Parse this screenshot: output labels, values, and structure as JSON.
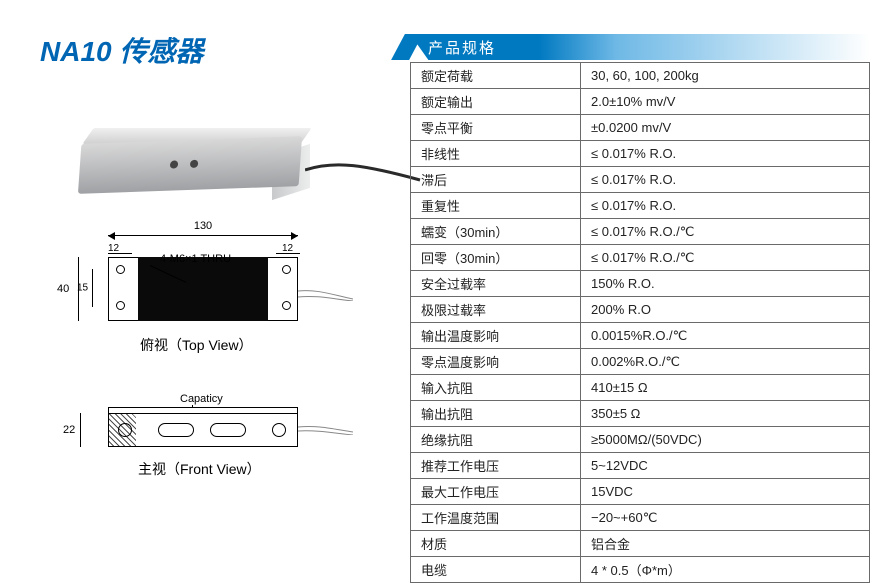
{
  "title": "NA10 传感器",
  "spec_header": "产品规格",
  "photo": {
    "alt": "NA10 load cell sensor"
  },
  "top_view": {
    "label": "俯视（Top View）",
    "dim_width": "130",
    "dim_edge_a": "12",
    "dim_edge_b": "12",
    "dim_height": "40",
    "dim_hole_pitch": "15",
    "callout": "4-M6×1 THRU"
  },
  "front_view": {
    "label": "主视（Front View）",
    "capacity_label": "Capaticy",
    "dim_thickness": "22"
  },
  "spec_rows": [
    {
      "k": "额定荷载",
      "v": "30, 60, 100, 200kg"
    },
    {
      "k": "额定输出",
      "v": "2.0±10% mv/V"
    },
    {
      "k": "零点平衡",
      "v": " ±0.0200 mv/V"
    },
    {
      "k": "非线性",
      "v": "≤ 0.017% R.O."
    },
    {
      "k": "滞后",
      "v": "≤ 0.017% R.O."
    },
    {
      "k": "重复性",
      "v": "≤ 0.017% R.O."
    },
    {
      "k": "蠕变（30min）",
      "v": "≤ 0.017% R.O./℃"
    },
    {
      "k": "回零（30min）",
      "v": "≤ 0.017% R.O./℃"
    },
    {
      "k": "安全过载率",
      "v": "150% R.O."
    },
    {
      "k": "极限过载率",
      "v": "200% R.O"
    },
    {
      "k": "输出温度影响",
      "v": "0.0015%R.O./℃"
    },
    {
      "k": "零点温度影响",
      "v": "0.002%R.O./℃"
    },
    {
      "k": "输入抗阻",
      "v": "410±15 Ω"
    },
    {
      "k": "输出抗阻",
      "v": "350±5 Ω"
    },
    {
      "k": "绝缘抗阻",
      "v": " ≥5000MΩ/(50VDC)"
    },
    {
      "k": "推荐工作电压",
      "v": "5~12VDC"
    },
    {
      "k": "最大工作电压",
      "v": "15VDC"
    },
    {
      "k": "工作温度范围",
      "v": "−20~+60℃"
    },
    {
      "k": "材质",
      "v": "铝合金"
    },
    {
      "k": "电缆",
      "v": "4 * 0.5（Φ*m）"
    }
  ],
  "colors": {
    "title": "#0065b3",
    "header_blue": "#0079c1",
    "border": "#6a6a6a"
  }
}
